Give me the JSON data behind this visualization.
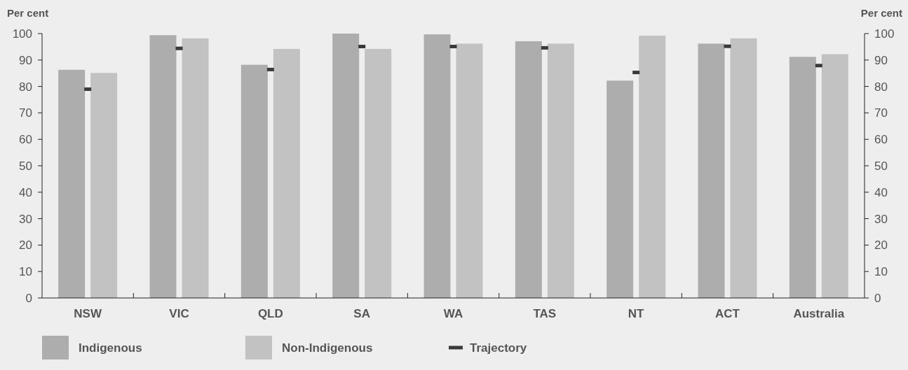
{
  "chart_data": {
    "type": "bar",
    "ylabel": "Per cent",
    "y2label": "Per cent",
    "categories": [
      "NSW",
      "VIC",
      "QLD",
      "SA",
      "WA",
      "TAS",
      "NT",
      "ACT",
      "Australia"
    ],
    "series": [
      {
        "name": "Indigenous",
        "color": "#adadad",
        "values": [
          86.3,
          99.4,
          88.2,
          100,
          99.7,
          97.1,
          82.2,
          96.2,
          91.2
        ]
      },
      {
        "name": "Non-Indigenous",
        "color": "#c2c2c2",
        "values": [
          85.1,
          98.2,
          94.2,
          94.2,
          96.2,
          96.2,
          99.2,
          98.2,
          92.2
        ]
      },
      {
        "name": "Trajectory",
        "type": "scatter",
        "color": "#3a3a3a",
        "x": [
          "NSW",
          "VIC",
          "QLD",
          "SA",
          "WA",
          "TAS",
          "NT",
          "ACT",
          "Australia"
        ],
        "values": [
          79.0,
          94.4,
          86.4,
          95.1,
          95.1,
          94.6,
          85.3,
          95.2,
          87.9
        ]
      }
    ],
    "ylim": [
      0,
      100
    ],
    "yticks": [
      0,
      10,
      20,
      30,
      40,
      50,
      60,
      70,
      80,
      90,
      100
    ],
    "y2lim": [
      0,
      100
    ],
    "y2ticks": [
      0,
      10,
      20,
      30,
      40,
      50,
      60,
      70,
      80,
      90,
      100
    ],
    "grid": false,
    "legend": "bottom left"
  }
}
